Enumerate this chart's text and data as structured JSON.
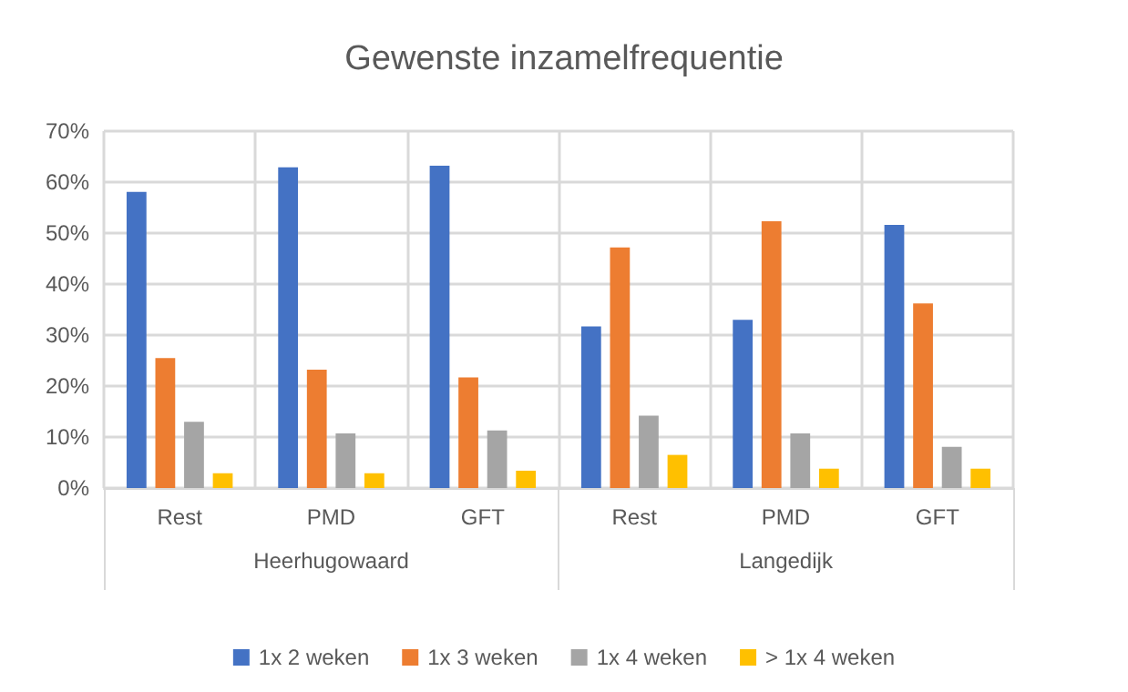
{
  "chart_data": {
    "type": "bar",
    "title": "Gewenste inzamelfrequentie",
    "categories": [
      "Rest",
      "PMD",
      "GFT",
      "Rest",
      "PMD",
      "GFT"
    ],
    "annotations": [
      "Heerhugowaard",
      "Langedijk"
    ],
    "series": [
      {
        "name": "1x 2 weken",
        "color": "#4472c4",
        "values": [
          58.1,
          62.9,
          63.2,
          31.7,
          33.0,
          51.6
        ]
      },
      {
        "name": "1x 3 weken",
        "color": "#ed7d31",
        "values": [
          25.5,
          23.2,
          21.7,
          47.2,
          52.3,
          36.2
        ]
      },
      {
        "name": "1x 4 weken",
        "color": "#a5a5a5",
        "values": [
          13.0,
          10.7,
          11.3,
          14.2,
          10.7,
          8.1
        ]
      },
      {
        "name": "> 1x 4 weken",
        "color": "#ffc000",
        "values": [
          2.9,
          2.9,
          3.4,
          6.5,
          3.8,
          3.8
        ]
      }
    ],
    "ylim": [
      0,
      70
    ],
    "yticks": [
      {
        "value": 0,
        "label": "0%"
      },
      {
        "value": 10,
        "label": "10%"
      },
      {
        "value": 20,
        "label": "20%"
      },
      {
        "value": 30,
        "label": "30%"
      },
      {
        "value": 40,
        "label": "40%"
      },
      {
        "value": 50,
        "label": "50%"
      },
      {
        "value": 60,
        "label": "60%"
      },
      {
        "value": 70,
        "label": "70%"
      }
    ],
    "grid": true,
    "legend": "bottom"
  }
}
